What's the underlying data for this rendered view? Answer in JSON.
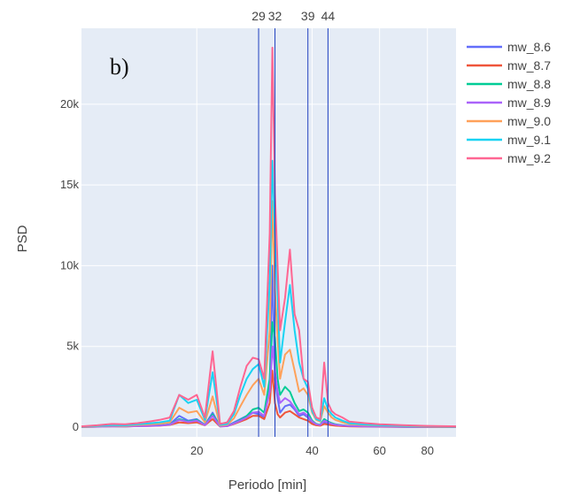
{
  "chart_data": {
    "type": "line",
    "panel_label": "b)",
    "xlabel": "Periodo [min]",
    "ylabel": "PSD",
    "x_scale": "log",
    "xlim": [
      10,
      95
    ],
    "ylim": [
      -600,
      24700
    ],
    "grid": true,
    "x_ticks": [
      {
        "value": 20,
        "label": "20"
      },
      {
        "value": 40,
        "label": "40"
      },
      {
        "value": 60,
        "label": "60"
      },
      {
        "value": 80,
        "label": "80"
      }
    ],
    "y_ticks": [
      {
        "value": 0,
        "label": "0"
      },
      {
        "value": 5000,
        "label": "5k"
      },
      {
        "value": 10000,
        "label": "10k"
      },
      {
        "value": 15000,
        "label": "15k"
      },
      {
        "value": 20000,
        "label": "20k"
      }
    ],
    "vertical_lines": [
      {
        "x": 29,
        "label": "29"
      },
      {
        "x": 32,
        "label": "32"
      },
      {
        "x": 39,
        "label": "39"
      },
      {
        "x": 44,
        "label": "44"
      }
    ],
    "legend_position": "right",
    "x": [
      10,
      11,
      12,
      13,
      14,
      15,
      16,
      17,
      18,
      19,
      20,
      21,
      22,
      23,
      24,
      25,
      26,
      27,
      28,
      29,
      30,
      31,
      31.5,
      32,
      32.5,
      33,
      34,
      35,
      36,
      37,
      38,
      39,
      40,
      41,
      42,
      43,
      44,
      45,
      46,
      48,
      50,
      55,
      60,
      70,
      80,
      95
    ],
    "series": [
      {
        "name": "mw_8.6",
        "color": "#636efa",
        "values": [
          20,
          40,
          60,
          50,
          80,
          100,
          120,
          180,
          700,
          400,
          500,
          150,
          900,
          60,
          80,
          300,
          500,
          700,
          900,
          800,
          600,
          2500,
          10000,
          3000,
          1800,
          900,
          1300,
          1400,
          1100,
          700,
          800,
          600,
          300,
          150,
          120,
          300,
          200,
          150,
          120,
          80,
          60,
          40,
          30,
          20,
          15,
          10
        ]
      },
      {
        "name": "mw_8.7",
        "color": "#ef553b",
        "values": [
          10,
          25,
          40,
          35,
          60,
          70,
          90,
          140,
          300,
          250,
          300,
          120,
          500,
          40,
          60,
          200,
          350,
          500,
          700,
          700,
          500,
          1500,
          3500,
          1500,
          800,
          600,
          900,
          1000,
          800,
          600,
          500,
          400,
          200,
          120,
          90,
          200,
          160,
          120,
          90,
          60,
          40,
          30,
          25,
          15,
          10,
          8
        ]
      },
      {
        "name": "mw_8.8",
        "color": "#00cc96",
        "values": [
          15,
          30,
          50,
          40,
          70,
          90,
          110,
          160,
          500,
          350,
          450,
          140,
          800,
          50,
          70,
          250,
          450,
          700,
          1100,
          1200,
          900,
          3000,
          6500,
          5500,
          3000,
          2000,
          2500,
          2200,
          1500,
          1000,
          1100,
          900,
          400,
          200,
          150,
          500,
          350,
          250,
          180,
          120,
          80,
          50,
          40,
          25,
          18,
          12
        ]
      },
      {
        "name": "mw_8.9",
        "color": "#ab63fa",
        "values": [
          12,
          28,
          45,
          38,
          65,
          80,
          100,
          150,
          450,
          320,
          400,
          130,
          700,
          45,
          65,
          230,
          400,
          600,
          900,
          950,
          700,
          2200,
          5000,
          3500,
          2200,
          1500,
          1800,
          1600,
          1200,
          800,
          900,
          700,
          350,
          180,
          130,
          400,
          300,
          200,
          150,
          100,
          70,
          45,
          35,
          22,
          16,
          11
        ]
      },
      {
        "name": "mw_9.0",
        "color": "#ffa15a",
        "values": [
          30,
          60,
          100,
          80,
          140,
          180,
          220,
          300,
          1200,
          900,
          1000,
          300,
          1900,
          100,
          150,
          550,
          1300,
          2000,
          2600,
          3000,
          2000,
          6000,
          14000,
          8500,
          5500,
          3000,
          4500,
          4800,
          3500,
          2200,
          2400,
          2000,
          900,
          450,
          350,
          1300,
          900,
          600,
          450,
          300,
          200,
          130,
          100,
          60,
          45,
          30
        ]
      },
      {
        "name": "mw_9.1",
        "color": "#19d3f3",
        "values": [
          40,
          80,
          130,
          110,
          180,
          240,
          300,
          400,
          2000,
          1500,
          1700,
          450,
          3400,
          140,
          200,
          800,
          2000,
          3000,
          3600,
          3900,
          2500,
          9000,
          16500,
          12000,
          8000,
          4000,
          6500,
          8800,
          6000,
          4000,
          3000,
          2400,
          1000,
          500,
          400,
          1800,
          1100,
          800,
          600,
          400,
          250,
          160,
          120,
          80,
          60,
          40
        ]
      },
      {
        "name": "mw_9.2",
        "color": "#ff6692",
        "values": [
          50,
          120,
          200,
          180,
          250,
          350,
          450,
          600,
          2000,
          1700,
          2000,
          600,
          4700,
          200,
          300,
          1000,
          2500,
          3800,
          4300,
          4200,
          3000,
          12000,
          23500,
          14500,
          10000,
          6000,
          8000,
          11000,
          7000,
          6000,
          3000,
          2800,
          1200,
          600,
          500,
          4000,
          1500,
          1000,
          800,
          600,
          350,
          250,
          180,
          120,
          80,
          50
        ]
      }
    ]
  }
}
